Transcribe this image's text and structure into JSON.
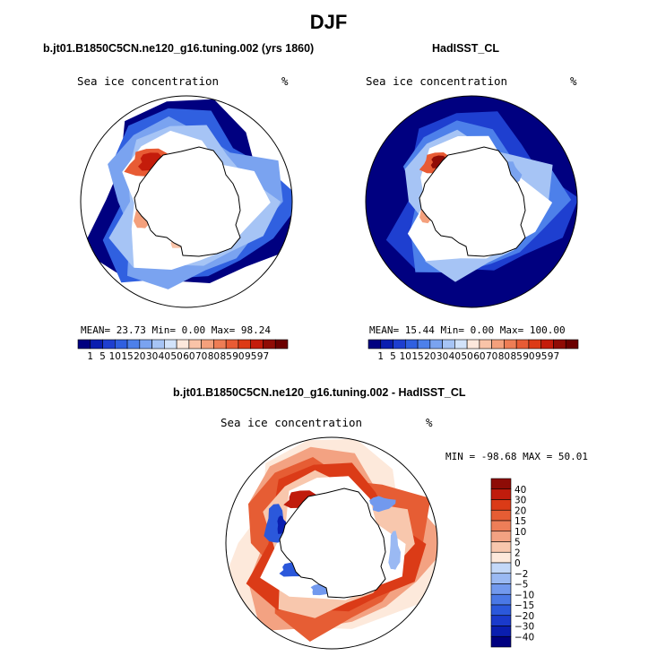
{
  "title": "DJF",
  "palettes": {
    "abs": [
      "#000080",
      "#0a1eb0",
      "#1e3fd0",
      "#3060e0",
      "#4d80ea",
      "#7aa3f0",
      "#a6c4f5",
      "#d2e3fa",
      "#fde8dc",
      "#f9c3a8",
      "#f4a07c",
      "#ee7d55",
      "#e85b34",
      "#dd3b16",
      "#c41c0b",
      "#900c05",
      "#6b0000"
    ],
    "diff": [
      "#000080",
      "#0a1eaf",
      "#1a3acb",
      "#2b58db",
      "#4a78e6",
      "#7299ee",
      "#9ab9f3",
      "#c3d8f8",
      "#fde9db",
      "#f8c7ad",
      "#f3a282",
      "#ed7e58",
      "#e65d34",
      "#db3b17",
      "#c01c0c",
      "#8e0c06"
    ]
  },
  "chart_data": [
    {
      "type": "heatmap",
      "title": "b.jt01.B1850C5CN.ne120_g16.tuning.002 (yrs 1860)",
      "variable_label": "Sea ice concentration",
      "units_label": "%",
      "stats": {
        "mean_label": "MEAN=",
        "mean": "23.73",
        "min_label": "Min=",
        "min": "0.00",
        "max_label": "Max=",
        "max": "98.24"
      },
      "colorbar": {
        "orientation": "horizontal",
        "levels": [
          "1",
          "5",
          "10",
          "15",
          "20",
          "30",
          "40",
          "50",
          "60",
          "70",
          "80",
          "85",
          "90",
          "95",
          "97"
        ]
      }
    },
    {
      "type": "heatmap",
      "title": "HadISST_CL",
      "variable_label": "Sea ice concentration",
      "units_label": "%",
      "stats": {
        "mean_label": "MEAN=",
        "mean": "15.44",
        "min_label": "Min=",
        "min": "0.00",
        "max_label": "Max=",
        "max": "100.00"
      },
      "colorbar": {
        "orientation": "horizontal",
        "levels": [
          "1",
          "5",
          "10",
          "15",
          "20",
          "30",
          "40",
          "50",
          "60",
          "70",
          "80",
          "85",
          "90",
          "95",
          "97"
        ]
      }
    },
    {
      "type": "heatmap",
      "title": "b.jt01.B1850C5CN.ne120_g16.tuning.002 - HadISST_CL",
      "variable_label": "Sea ice concentration",
      "units_label": "%",
      "stats": {
        "min_label": "MIN =",
        "min": "-98.68",
        "max_label": "MAX =",
        "max": "50.01"
      },
      "colorbar": {
        "orientation": "vertical",
        "levels": [
          "40",
          "30",
          "20",
          "15",
          "10",
          "5",
          "2",
          "0",
          "−2",
          "−5",
          "−10",
          "−15",
          "−20",
          "−30",
          "−40"
        ]
      }
    }
  ]
}
